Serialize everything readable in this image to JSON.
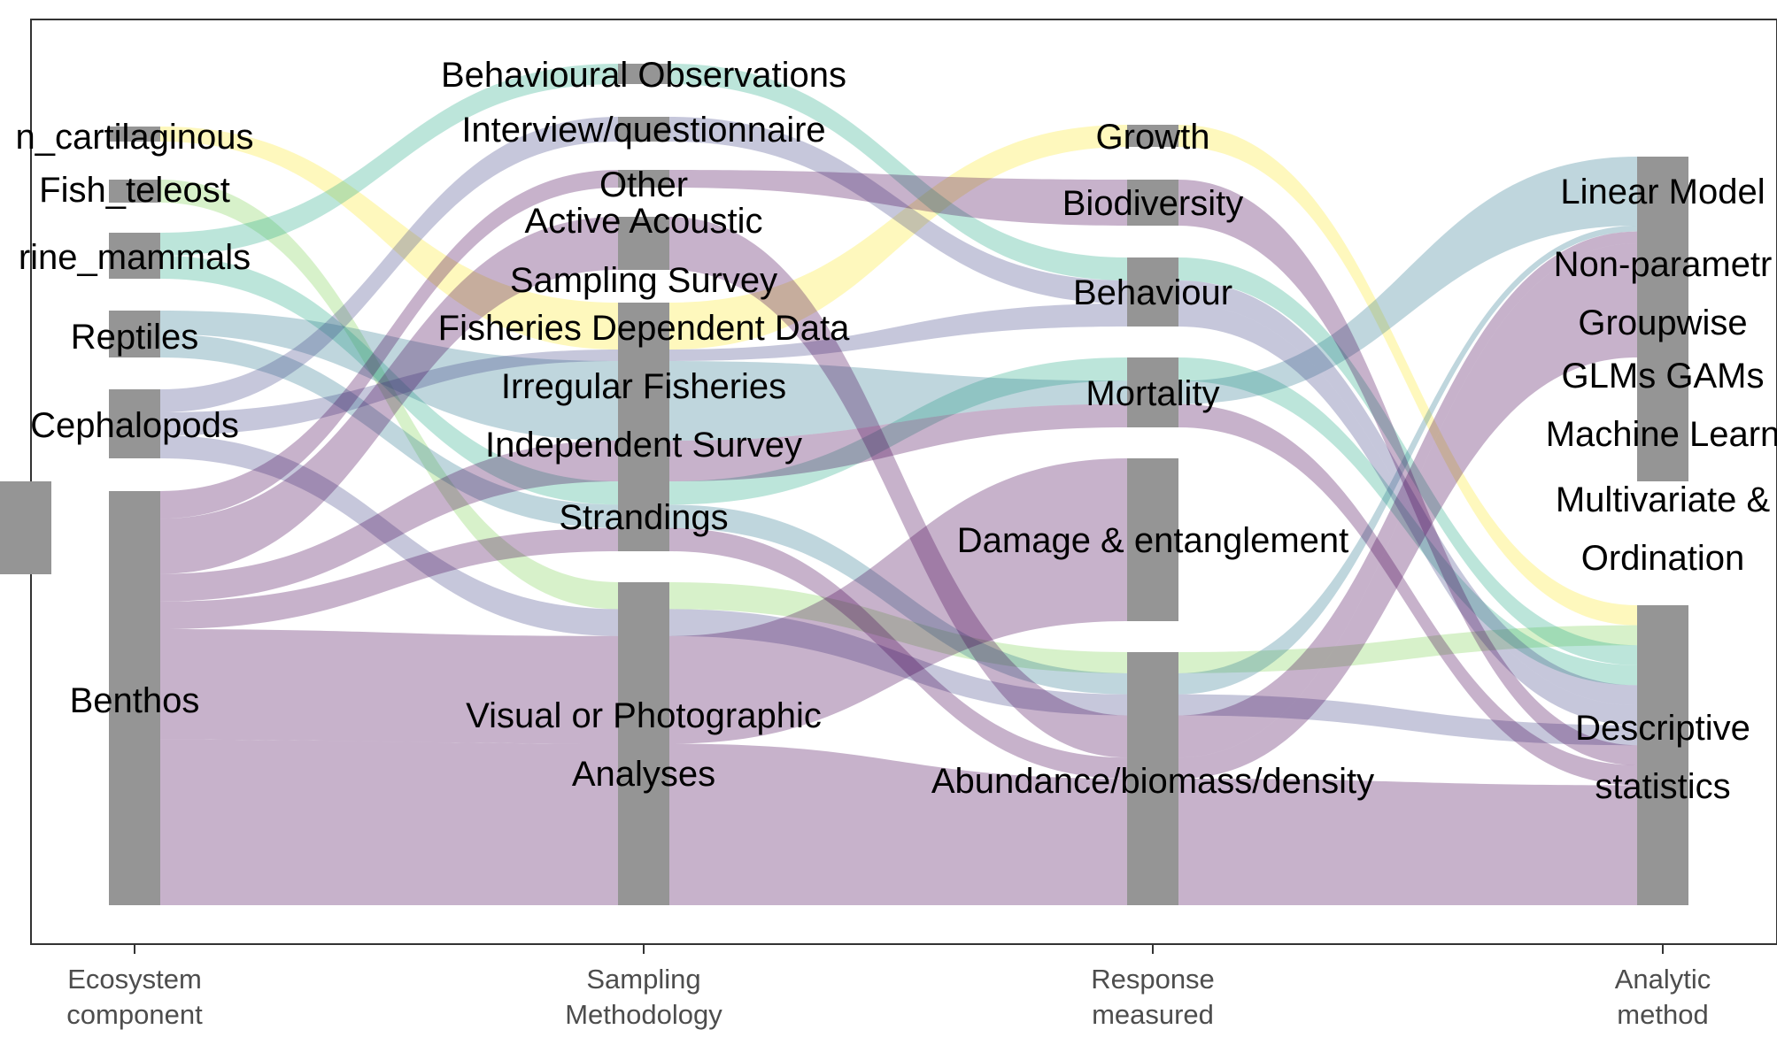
{
  "chart_data": {
    "type": "alluvial",
    "axes": [
      {
        "label_lines": [
          "Ecosystem",
          "component"
        ],
        "nodes": [
          "Fish_cartilaginous",
          "Fish_teleost",
          "Marine_mammals",
          "Reptiles",
          "Cephalopods",
          "Benthos"
        ]
      },
      {
        "label_lines": [
          "Sampling",
          "Methodology"
        ],
        "nodes": [
          "Behavioural Observations",
          "Interview/questionnaire",
          "Other",
          "Active Acoustic",
          "Sampling Survey",
          "Fisheries Dependent Data",
          "Irregular Fisheries",
          "Independent Survey",
          "Strandings",
          "Visual or Photographic Analyses"
        ]
      },
      {
        "label_lines": [
          "Response",
          "measured"
        ],
        "nodes": [
          "Growth",
          "Biodiversity",
          "Behaviour",
          "Mortality",
          "Damage & entanglement",
          "Abundance/biomass/density"
        ]
      },
      {
        "label_lines": [
          "Analytic",
          "method"
        ],
        "nodes": [
          "Linear Models",
          "Non-parametric",
          "Groupwise",
          "GLMs GAMs",
          "Machine Learning",
          "Multivariate &",
          "Ordination",
          "Descriptive statistics"
        ]
      }
    ],
    "node_labels": [
      {
        "text": "n_cartilaginous"
      },
      {
        "text": "Fish_teleost"
      },
      {
        "text": "rine_mammals"
      },
      {
        "text": "Reptiles"
      },
      {
        "text": "Cephalopods"
      },
      {
        "text": "Benthos"
      },
      {
        "text": "Behavioural Observations"
      },
      {
        "text": "Interview/questionnaire"
      },
      {
        "text": "Other"
      },
      {
        "text": "Active Acoustic"
      },
      {
        "text": "Sampling Survey"
      },
      {
        "text": "Fisheries Dependent Data"
      },
      {
        "text": "Irregular Fisheries"
      },
      {
        "text": "Independent Survey"
      },
      {
        "text": "Strandings"
      },
      {
        "text": "Visual or Photographic"
      },
      {
        "text": "Analyses"
      },
      {
        "text": "Growth"
      },
      {
        "text": "Biodiversity"
      },
      {
        "text": "Behaviour"
      },
      {
        "text": "Mortality"
      },
      {
        "text": "Damage & entanglement"
      },
      {
        "text": "Abundance/biomass/density"
      },
      {
        "text": "Linear Model"
      },
      {
        "text": "Non-parametr"
      },
      {
        "text": "Groupwise"
      },
      {
        "text": "GLMs GAMs"
      },
      {
        "text": "Machine Learn"
      },
      {
        "text": "Multivariate &"
      },
      {
        "text": "Ordination"
      },
      {
        "text": "Descriptive"
      },
      {
        "text": "statistics"
      }
    ],
    "flows": [
      {
        "group": "Fish_cartilaginous",
        "color": "#fde725",
        "path": [
          "Fish_cartilaginous",
          "Sampling Survey",
          "Growth",
          "Descriptive statistics"
        ],
        "value": 1
      },
      {
        "group": "Fish_teleost",
        "color": "#7ad151",
        "path": [
          "Fish_teleost",
          "Visual or Photographic Analyses",
          "Abundance/biomass/density",
          "Descriptive statistics"
        ],
        "value": 1
      },
      {
        "group": "Marine_mammals",
        "color": "#22a884",
        "path": [
          "Marine_mammals",
          "Behavioural Observations",
          "Behaviour",
          "Descriptive statistics"
        ],
        "value": 1
      },
      {
        "group": "Marine_mammals",
        "color": "#22a884",
        "path": [
          "Marine_mammals",
          "Strandings",
          "Mortality",
          "Descriptive statistics"
        ],
        "value": 1
      },
      {
        "group": "Reptiles",
        "color": "#2a788e",
        "path": [
          "Reptiles",
          "Irregular Fisheries",
          "Mortality",
          "Linear Models"
        ],
        "value": 1
      },
      {
        "group": "Reptiles",
        "color": "#2a788e",
        "path": [
          "Reptiles",
          "Strandings",
          "Abundance/biomass/density",
          "Non-parametric"
        ],
        "value": 1
      },
      {
        "group": "Cephalopods",
        "color": "#414487",
        "path": [
          "Cephalopods",
          "Interview/questionnaire",
          "Behaviour",
          "Descriptive statistics"
        ],
        "value": 1
      },
      {
        "group": "Cephalopods",
        "color": "#414487",
        "path": [
          "Cephalopods",
          "Fisheries Dependent Data",
          "Behaviour",
          "Descriptive statistics"
        ],
        "value": 1
      },
      {
        "group": "Cephalopods",
        "color": "#414487",
        "path": [
          "Cephalopods",
          "Visual or Photographic Analyses",
          "Abundance/biomass/density",
          "Descriptive statistics"
        ],
        "value": 1
      },
      {
        "group": "Benthos",
        "color": "#440154",
        "path": [
          "Benthos",
          "Other",
          "Biodiversity",
          "Descriptive statistics"
        ],
        "value": 1
      },
      {
        "group": "Benthos",
        "color": "#440154",
        "path": [
          "Benthos",
          "Active Acoustic",
          "Abundance/biomass/density",
          "Non-parametric"
        ],
        "value": 2
      },
      {
        "group": "Benthos",
        "color": "#440154",
        "path": [
          "Benthos",
          "Independent Survey",
          "Mortality",
          "Descriptive statistics"
        ],
        "value": 1
      },
      {
        "group": "Benthos",
        "color": "#440154",
        "path": [
          "Benthos",
          "Strandings",
          "Abundance/biomass/density",
          "Groupwise"
        ],
        "value": 1
      },
      {
        "group": "Benthos",
        "color": "#440154",
        "path": [
          "Benthos",
          "Visual or Photographic Analyses",
          "Damage & entanglement",
          "Multivariate & Ordination"
        ],
        "value": 4
      },
      {
        "group": "Benthos",
        "color": "#440154",
        "path": [
          "Benthos",
          "Visual or Photographic Analyses",
          "Abundance/biomass/density",
          "Descriptive statistics"
        ],
        "value": 6
      }
    ]
  }
}
